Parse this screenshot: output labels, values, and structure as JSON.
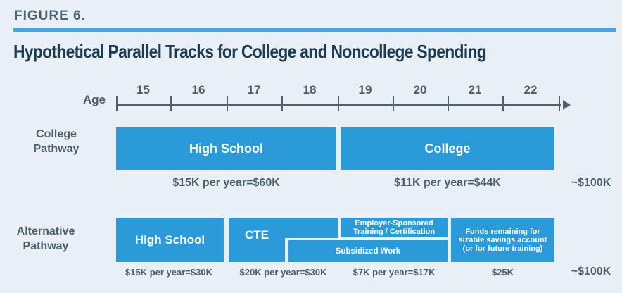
{
  "figure_label": "FIGURE 6.",
  "title": "Hypothetical Parallel Tracks for College and Noncollege Spending",
  "axis": {
    "label": "Age",
    "ages": [
      "15",
      "16",
      "17",
      "18",
      "19",
      "20",
      "21",
      "22"
    ]
  },
  "college": {
    "label_line1": "College",
    "label_line2": "Pathway",
    "high_school": "High School",
    "college": "College",
    "cost_hs": "$15K per year=$60K",
    "cost_college": "$11K per year=$44K",
    "total": "~$100K"
  },
  "alternative": {
    "label_line1": "Alternative",
    "label_line2": "Pathway",
    "high_school": "High School",
    "cte": "CTE",
    "employer_line1": "Employer-Sponsored",
    "employer_line2": "Training / Certification",
    "subsidized": "Subsidized Work",
    "funds_line1": "Funds remaining for",
    "funds_line2": "sizable savings account",
    "funds_line3": "(or for future training)",
    "cost_hs": "$15K per year=$30K",
    "cost_cte": "$20K per year=$30K",
    "cost_work": "$7K per year=$17K",
    "cost_funds": "$25K",
    "total": "~$100K"
  },
  "colors": {
    "bar": "#2a9bd8",
    "title": "#1d3b53",
    "rule": "#4aa6d9"
  }
}
